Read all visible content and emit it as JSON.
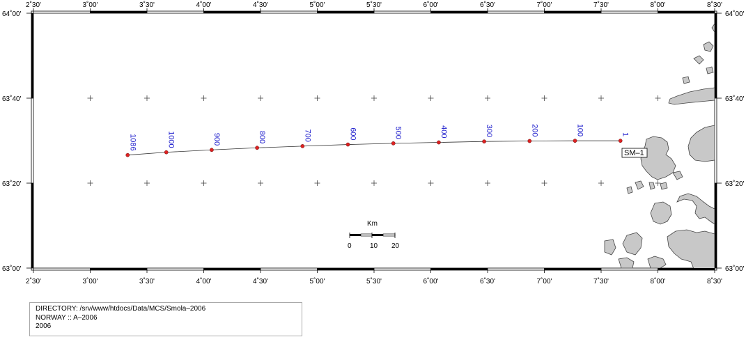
{
  "map": {
    "lon_range": [
      2.5,
      8.5
    ],
    "lat_range": [
      63.0,
      64.0
    ],
    "lon_ticks": [
      {
        "value": 2.5,
        "label": "2˚30'"
      },
      {
        "value": 3.0,
        "label": "3˚00'"
      },
      {
        "value": 3.5,
        "label": "3˚30'"
      },
      {
        "value": 4.0,
        "label": "4˚00'"
      },
      {
        "value": 4.5,
        "label": "4˚30'"
      },
      {
        "value": 5.0,
        "label": "5˚00'"
      },
      {
        "value": 5.5,
        "label": "5˚30'"
      },
      {
        "value": 6.0,
        "label": "6˚00'"
      },
      {
        "value": 6.5,
        "label": "6˚30'"
      },
      {
        "value": 7.0,
        "label": "7˚00'"
      },
      {
        "value": 7.5,
        "label": "7˚30'"
      },
      {
        "value": 8.0,
        "label": "8˚00'"
      },
      {
        "value": 8.5,
        "label": "8˚30'"
      }
    ],
    "lat_ticks": [
      {
        "value": 63.0,
        "label": "63˚00'"
      },
      {
        "value": 63.3333,
        "label": "63˚20'"
      },
      {
        "value": 63.6667,
        "label": "63˚40'"
      },
      {
        "value": 64.0,
        "label": "64˚00'"
      }
    ],
    "line": {
      "name": "SM–1",
      "line_color": "#333333",
      "point_color": "#dd2222",
      "label_color": "#1a1acc",
      "shots": [
        {
          "label": "1",
          "lon": 7.67,
          "lat": 63.4995
        },
        {
          "label": "100",
          "lon": 7.27,
          "lat": 63.4995
        },
        {
          "label": "200",
          "lon": 6.87,
          "lat": 63.4986
        },
        {
          "label": "300",
          "lon": 6.47,
          "lat": 63.4968
        },
        {
          "label": "400",
          "lon": 6.07,
          "lat": 63.4931
        },
        {
          "label": "500",
          "lon": 5.67,
          "lat": 63.4894
        },
        {
          "label": "600",
          "lon": 5.27,
          "lat": 63.4848
        },
        {
          "label": "700",
          "lon": 4.87,
          "lat": 63.4784
        },
        {
          "label": "800",
          "lon": 4.47,
          "lat": 63.4719
        },
        {
          "label": "900",
          "lon": 4.07,
          "lat": 63.4637
        },
        {
          "label": "1000",
          "lon": 3.67,
          "lat": 63.4545
        },
        {
          "label": "1086",
          "lon": 3.33,
          "lat": 63.4435
        }
      ]
    },
    "scale_bar": {
      "title": "Km",
      "labels": [
        "0",
        "10",
        "20"
      ]
    },
    "land_color": "#c8c8c8",
    "land_outline": "#444444"
  },
  "info": {
    "directory": "DIRECTORY: /srv/www/htdocs/Data/MCS/Smola–2006",
    "survey": "NORWAY :: A–2006",
    "year": "2006"
  }
}
